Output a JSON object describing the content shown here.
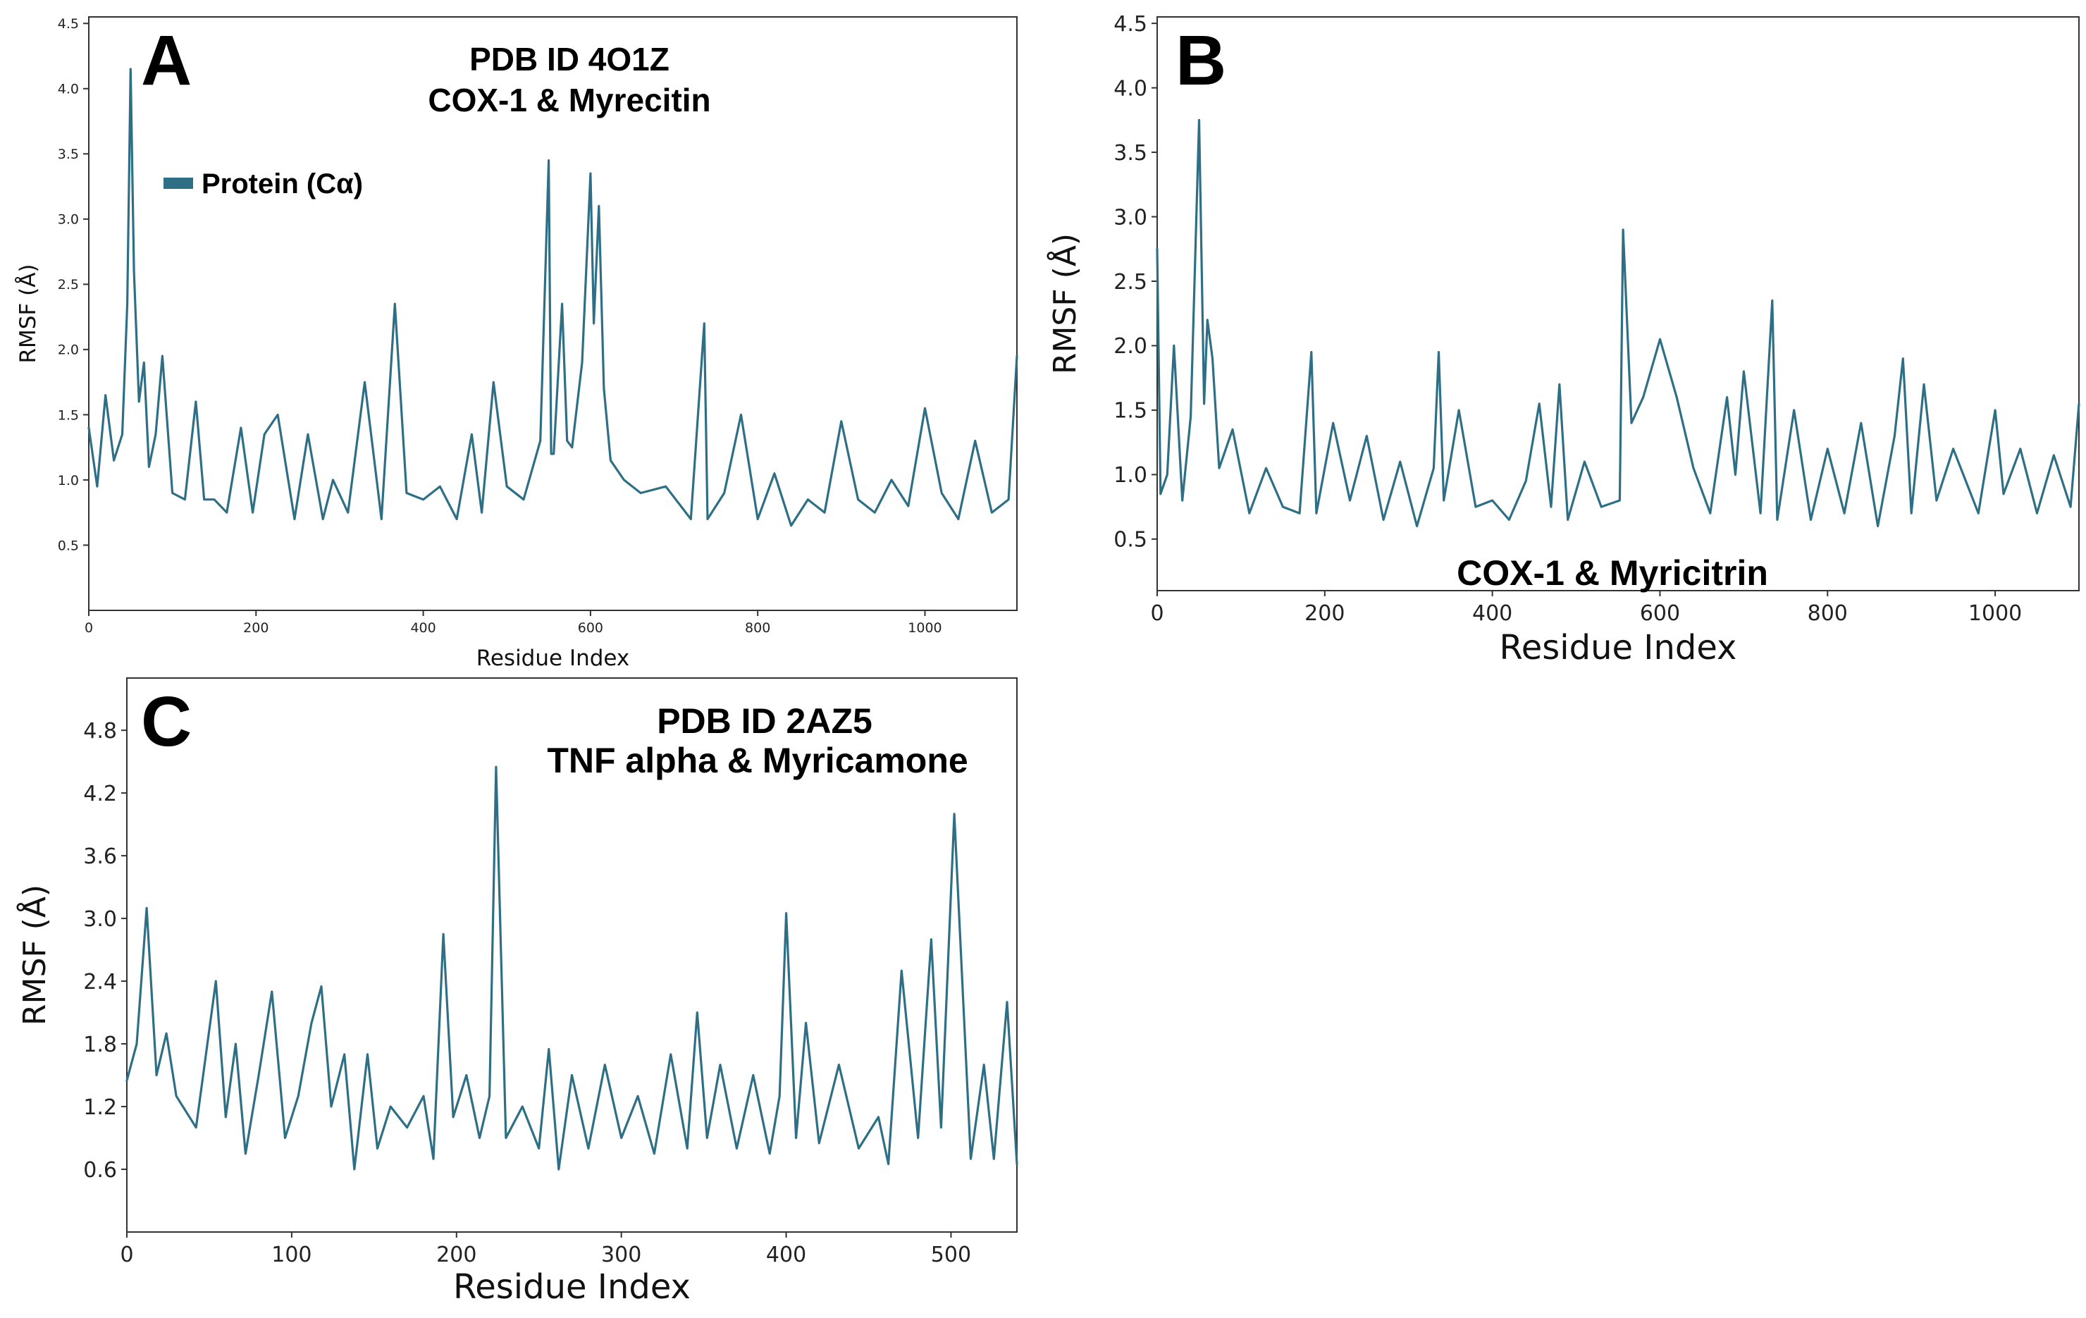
{
  "colors": {
    "series": "#2e6f86",
    "axis": "#333333",
    "background": "#ffffff"
  },
  "chart_data": [
    {
      "panel": "A",
      "type": "line",
      "title": "PDB ID  4O1Z",
      "subtitle": "COX-1 & Myrecitin",
      "xlabel": "Residue Index",
      "ylabel": "RMSF (Å)",
      "xlim": [
        0,
        1110
      ],
      "ylim": [
        0.0,
        4.55
      ],
      "xticks": [
        0,
        200,
        400,
        600,
        800,
        1000
      ],
      "yticks": [
        0.5,
        1.0,
        1.5,
        2.0,
        2.5,
        3.0,
        3.5,
        4.0,
        4.5
      ],
      "ytick_labels": [
        "0.5",
        "1.0",
        "1.5",
        "2.0",
        "2.5",
        "3.0",
        "3.5",
        "4.0",
        "4.5"
      ],
      "legend": {
        "label": "Protein (Cα)",
        "position": "top-left"
      },
      "series": [
        {
          "name": "Protein (Cα)",
          "x": [
            0,
            10,
            20,
            30,
            40,
            46,
            50,
            54,
            60,
            66,
            72,
            80,
            88,
            100,
            115,
            128,
            138,
            150,
            165,
            182,
            196,
            210,
            226,
            246,
            262,
            280,
            292,
            310,
            330,
            350,
            366,
            380,
            400,
            420,
            440,
            458,
            470,
            484,
            500,
            520,
            540,
            550,
            553,
            556,
            566,
            572,
            578,
            590,
            600,
            604,
            610,
            616,
            624,
            640,
            660,
            690,
            720,
            736,
            740,
            760,
            780,
            800,
            820,
            840,
            860,
            880,
            900,
            920,
            940,
            960,
            980,
            1000,
            1020,
            1040,
            1060,
            1080,
            1100,
            1110
          ],
          "values": [
            1.4,
            0.95,
            1.65,
            1.15,
            1.35,
            2.35,
            4.15,
            2.6,
            1.6,
            1.9,
            1.1,
            1.35,
            1.95,
            0.9,
            0.85,
            1.6,
            0.85,
            0.85,
            0.75,
            1.4,
            0.75,
            1.35,
            1.5,
            0.7,
            1.35,
            0.7,
            1.0,
            0.75,
            1.75,
            0.7,
            2.35,
            0.9,
            0.85,
            0.95,
            0.7,
            1.35,
            0.75,
            1.75,
            0.95,
            0.85,
            1.3,
            3.45,
            1.2,
            1.2,
            2.35,
            1.3,
            1.25,
            1.9,
            3.35,
            2.2,
            3.1,
            1.7,
            1.15,
            1.0,
            0.9,
            0.95,
            0.7,
            2.2,
            0.7,
            0.9,
            1.5,
            0.7,
            1.05,
            0.65,
            0.85,
            0.75,
            1.45,
            0.85,
            0.75,
            1.0,
            0.8,
            1.55,
            0.9,
            0.7,
            1.3,
            0.75,
            0.85,
            1.95
          ]
        }
      ]
    },
    {
      "panel": "B",
      "type": "line",
      "title": "COX-1 & Myricitrin",
      "xlabel": "Residue Index",
      "ylabel": "RMSF (Å)",
      "xlim": [
        0,
        1100
      ],
      "ylim": [
        0.1,
        4.55
      ],
      "xticks": [
        0,
        200,
        400,
        600,
        800,
        1000
      ],
      "yticks": [
        0.5,
        1.0,
        1.5,
        2.0,
        2.5,
        3.0,
        3.5,
        4.0,
        4.5
      ],
      "ytick_labels": [
        "0.5",
        "1.0",
        "1.5",
        "2.0",
        "2.5",
        "3.0",
        "3.5",
        "4.0",
        "4.5"
      ],
      "series": [
        {
          "name": "RMSF",
          "x": [
            0,
            4,
            12,
            20,
            30,
            40,
            50,
            56,
            60,
            66,
            74,
            90,
            110,
            130,
            150,
            170,
            184,
            190,
            210,
            230,
            250,
            270,
            290,
            310,
            330,
            336,
            342,
            360,
            380,
            400,
            420,
            440,
            456,
            470,
            480,
            490,
            510,
            530,
            552,
            556,
            566,
            580,
            600,
            620,
            640,
            660,
            680,
            690,
            700,
            720,
            734,
            740,
            760,
            780,
            800,
            820,
            840,
            860,
            880,
            890,
            900,
            915,
            930,
            950,
            980,
            1000,
            1010,
            1030,
            1050,
            1070,
            1090,
            1100
          ],
          "values": [
            2.75,
            0.85,
            1.0,
            2.0,
            0.8,
            1.45,
            3.75,
            1.55,
            2.2,
            1.9,
            1.05,
            1.35,
            0.7,
            1.05,
            0.75,
            0.7,
            1.95,
            0.7,
            1.4,
            0.8,
            1.3,
            0.65,
            1.1,
            0.6,
            1.05,
            1.95,
            0.8,
            1.5,
            0.75,
            0.8,
            0.65,
            0.95,
            1.55,
            0.75,
            1.7,
            0.65,
            1.1,
            0.75,
            0.8,
            2.9,
            1.4,
            1.6,
            2.05,
            1.6,
            1.05,
            0.7,
            1.6,
            1.0,
            1.8,
            0.7,
            2.35,
            0.65,
            1.5,
            0.65,
            1.2,
            0.7,
            1.4,
            0.6,
            1.3,
            1.9,
            0.7,
            1.7,
            0.8,
            1.2,
            0.7,
            1.5,
            0.85,
            1.2,
            0.7,
            1.15,
            0.75,
            1.55
          ]
        }
      ]
    },
    {
      "panel": "C",
      "type": "line",
      "title": "PDB ID  2AZ5",
      "subtitle": "TNF alpha & Myricamone",
      "xlabel": "Residue Index",
      "ylabel": "RMSF (Å)",
      "xlim": [
        0,
        540
      ],
      "ylim": [
        0.0,
        5.3
      ],
      "xticks": [
        0,
        100,
        200,
        300,
        400,
        500
      ],
      "yticks": [
        0.6,
        1.2,
        1.8,
        2.4,
        3.0,
        3.6,
        4.2,
        4.8
      ],
      "ytick_labels": [
        "0.6",
        "1.2",
        "1.8",
        "2.4",
        "3.0",
        "3.6",
        "4.2",
        "4.8"
      ],
      "series": [
        {
          "name": "RMSF",
          "x": [
            0,
            6,
            12,
            18,
            24,
            30,
            42,
            54,
            60,
            66,
            72,
            80,
            88,
            96,
            104,
            112,
            118,
            124,
            132,
            138,
            146,
            152,
            160,
            170,
            180,
            186,
            192,
            198,
            206,
            214,
            220,
            224,
            230,
            240,
            250,
            256,
            262,
            270,
            280,
            290,
            300,
            310,
            320,
            330,
            340,
            346,
            352,
            360,
            370,
            380,
            390,
            396,
            400,
            406,
            412,
            420,
            432,
            444,
            456,
            462,
            470,
            480,
            488,
            494,
            502,
            512,
            520,
            526,
            534,
            540
          ],
          "values": [
            1.45,
            1.8,
            3.1,
            1.5,
            1.9,
            1.3,
            1.0,
            2.4,
            1.1,
            1.8,
            0.75,
            1.5,
            2.3,
            0.9,
            1.3,
            2.0,
            2.35,
            1.2,
            1.7,
            0.6,
            1.7,
            0.8,
            1.2,
            1.0,
            1.3,
            0.7,
            2.85,
            1.1,
            1.5,
            0.9,
            1.3,
            4.45,
            0.9,
            1.2,
            0.8,
            1.75,
            0.6,
            1.5,
            0.8,
            1.6,
            0.9,
            1.3,
            0.75,
            1.7,
            0.8,
            2.1,
            0.9,
            1.6,
            0.8,
            1.5,
            0.75,
            1.3,
            3.05,
            0.9,
            2.0,
            0.85,
            1.6,
            0.8,
            1.1,
            0.65,
            2.5,
            0.9,
            2.8,
            1.0,
            4.0,
            0.7,
            1.6,
            0.7,
            2.2,
            0.65
          ]
        }
      ]
    }
  ]
}
